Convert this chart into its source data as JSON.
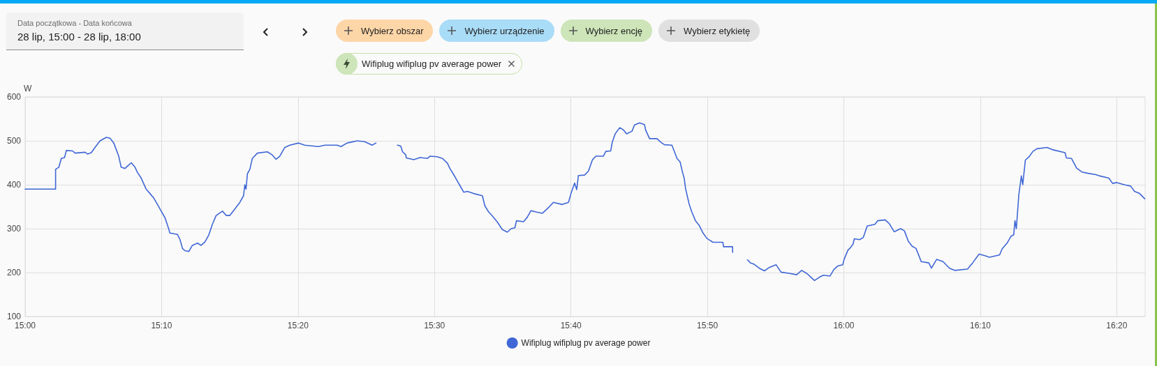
{
  "chart_data": {
    "type": "line",
    "ylabel": "W",
    "annotations": [
      "Data początkowa - Data końcowa",
      "28 lip, 15:00 - 28 lip, 18:00",
      "Wybierz obszar",
      "Wybierz urządzenie",
      "Wybierz encję",
      "Wybierz etykietę",
      "Wifiplug wifiplug pv average power"
    ],
    "x": [
      15.0,
      15.0372,
      15.0372,
      15.0412,
      15.0442,
      15.0482,
      15.0503,
      15.058,
      15.061,
      15.0732,
      15.0762,
      15.0808,
      15.0853,
      15.0915,
      15.0992,
      15.1037,
      15.1083,
      15.1143,
      15.1173,
      15.122,
      15.1265,
      15.1297,
      15.1342,
      15.1372,
      15.1418,
      15.1478,
      15.1525,
      15.157,
      15.1617,
      15.1662,
      15.1708,
      15.1753,
      15.1768,
      15.186,
      15.1892,
      15.1922,
      15.1952,
      15.1998,
      15.2043,
      15.2105,
      15.215,
      15.2197,
      15.2242,
      15.2287,
      15.2333,
      15.241,
      15.2455,
      15.25,
      15.2562,
      15.2623,
      15.2668,
      15.2683,
      15.2698,
      15.2715,
      15.2745,
      15.2775,
      15.2837,
      15.2958,
      15.3018,
      15.3065,
      15.311,
      15.3172,
      15.3233,
      15.334,
      15.3415,
      15.3583,
      15.366,
      15.3812,
      15.3858,
      15.3933,
      15.4057,
      15.4148,
      15.4238,
      15.4285,
      15.4417,
      15.4548,
      15.4588,
      15.461,
      15.465,
      15.4655,
      15.4747,
      15.4823,
      15.4915,
      15.4945,
      15.503,
      15.5097,
      15.5158,
      15.5188,
      15.5235,
      15.528,
      15.5317,
      15.5357,
      15.5402,
      15.5478,
      15.5585,
      15.5615,
      15.5662,
      15.5707,
      15.5768,
      15.5828,
      15.589,
      15.5935,
      15.5982,
      15.6002,
      15.6088,
      15.6133,
      15.6178,
      15.624,
      15.6317,
      15.6377,
      15.6453,
      15.656,
      15.6637,
      15.6667,
      15.6712,
      15.6737,
      15.6758,
      15.6833,
      15.688,
      15.693,
      15.6972,
      15.7062,
      15.7093,
      15.7153,
      15.717,
      15.7207,
      15.7262,
      15.7307,
      15.7347,
      15.7413,
      15.7443,
      15.7505,
      15.7565,
      15.758,
      15.7627,
      15.7718,
      15.7763,
      15.781,
      15.79,
      15.7962,
      15.8,
      15.803,
      15.805,
      15.8067,
      15.8112,
      15.8143,
      15.8188,
      15.8235,
      15.828,
      15.8327,
      15.84,
      15.8523,
      15.853,
      15.864,
      15.8642,
      15.8733,
      15.8823,
      15.886,
      15.8905,
      15.8967,
      15.903,
      15.9093,
      15.9172,
      15.9233,
      15.9343,
      15.9422,
      15.9485,
      15.9548,
      15.9595,
      15.9642,
      15.9705,
      15.9752,
      15.983,
      15.9878,
      15.9925,
      15.9987,
      16.0003,
      16.005,
      16.0082,
      16.0113,
      16.0128,
      16.0192,
      16.0238,
      16.0285,
      16.038,
      16.0412,
      16.0505,
      16.0552,
      16.0615,
      16.0693,
      16.074,
      16.0788,
      16.0835,
      16.0882,
      16.0945,
      16.1038,
      16.107,
      16.1133,
      16.1212,
      16.129,
      16.1353,
      16.151,
      16.1573,
      16.1652,
      16.173,
      16.1777,
      16.1902,
      16.1933,
      16.1997,
      16.2043,
      16.2075,
      16.209,
      16.2107,
      16.2137,
      16.2168,
      16.2185,
      16.2217,
      16.2263,
      16.231,
      16.2357,
      16.2482,
      16.2545,
      16.2702,
      16.2718,
      16.278,
      16.2843,
      16.2907,
      16.2985,
      16.3078,
      16.3127,
      16.3237,
      16.3283,
      16.333,
      16.3425,
      16.3503,
      16.355,
      16.3613,
      16.3675
    ],
    "series": [
      {
        "name": "Wifiplug wifiplug pv average power",
        "color": "#3f67d6",
        "values": [
          390,
          390,
          435,
          440,
          460,
          462,
          478,
          477,
          472,
          474,
          470,
          473,
          485,
          500,
          508,
          506,
          495,
          465,
          440,
          437,
          445,
          450,
          440,
          428,
          415,
          390,
          380,
          370,
          355,
          340,
          325,
          300,
          290,
          287,
          275,
          255,
          250,
          248,
          262,
          267,
          262,
          270,
          285,
          310,
          330,
          340,
          330,
          330,
          345,
          360,
          375,
          400,
          390,
          425,
          435,
          460,
          472,
          475,
          468,
          458,
          465,
          485,
          490,
          495,
          490,
          487,
          490,
          490,
          487,
          495,
          500,
          498,
          490,
          495,
          null,
          490,
          488,
          475,
          468,
          461,
          457,
          462,
          460,
          465,
          464,
          460,
          449,
          437,
          423,
          408,
          396,
          383,
          385,
          380,
          375,
          352,
          338,
          329,
          315,
          298,
          292,
          300,
          302,
          318,
          316,
          326,
          341,
          338,
          335,
          345,
          360,
          355,
          360,
          380,
          404,
          389,
          421,
          422,
          431,
          457,
          465,
          465,
          476,
          477,
          496,
          516,
          530,
          525,
          516,
          522,
          536,
          541,
          537,
          524,
          505,
          505,
          497,
          491,
          490,
          460,
          452,
          428,
          415,
          391,
          355,
          338,
          318,
          307,
          290,
          278,
          269,
          269,
          259,
          259,
          246,
          null,
          229,
          222,
          219,
          210,
          204,
          212,
          218,
          201,
          198,
          195,
          205,
          198,
          190,
          182,
          190,
          194,
          192,
          207,
          215,
          218,
          230,
          251,
          257,
          265,
          277,
          275,
          280,
          306,
          310,
          318,
          320,
          312,
          293,
          300,
          295,
          271,
          260,
          255,
          225,
          222,
          210,
          230,
          225,
          210,
          205,
          208,
          222,
          242,
          238,
          235,
          240,
          254,
          268,
          283,
          286,
          318,
          300,
          377,
          420,
          400,
          456,
          464,
          476,
          482,
          485,
          480,
          473,
          461,
          460,
          438,
          429,
          426,
          423,
          420,
          415,
          403,
          405,
          400,
          397,
          385,
          380,
          368
        ]
      }
    ],
    "xlim": [
      15,
      16.368
    ],
    "xticks": [
      {
        "value": 15,
        "label": "15:00"
      },
      {
        "value": 15.1667,
        "label": "15:10"
      },
      {
        "value": 15.3333,
        "label": "15:20"
      },
      {
        "value": 15.5,
        "label": "15:30"
      },
      {
        "value": 15.6667,
        "label": "15:40"
      },
      {
        "value": 15.8333,
        "label": "15:50"
      },
      {
        "value": 16,
        "label": "16:00"
      },
      {
        "value": 16.1667,
        "label": "16:10"
      },
      {
        "value": 16.3333,
        "label": "16:20"
      }
    ],
    "ylim": [
      100,
      600
    ],
    "yticks": [
      100,
      200,
      300,
      400,
      500,
      600
    ],
    "grid": true,
    "legend": "bottom",
    "marker": "none",
    "line_style": "solid"
  }
}
